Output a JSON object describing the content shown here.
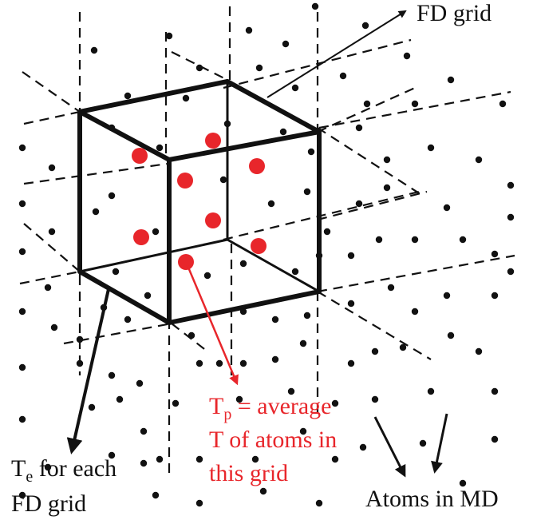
{
  "labels": {
    "fd_grid": "FD grid",
    "tp_line1_prefix": "T",
    "tp_line1_sub": "p",
    "tp_line1_rest": " = average",
    "tp_line2": "T of atoms in",
    "tp_line3": "this grid",
    "te_line1_prefix": "T",
    "te_line1_sub": "e",
    "te_line1_rest": " for each",
    "te_line2": "FD grid",
    "atoms": "Atoms in MD"
  },
  "colors": {
    "ink": "#111111",
    "highlight": "#e8262b"
  }
}
